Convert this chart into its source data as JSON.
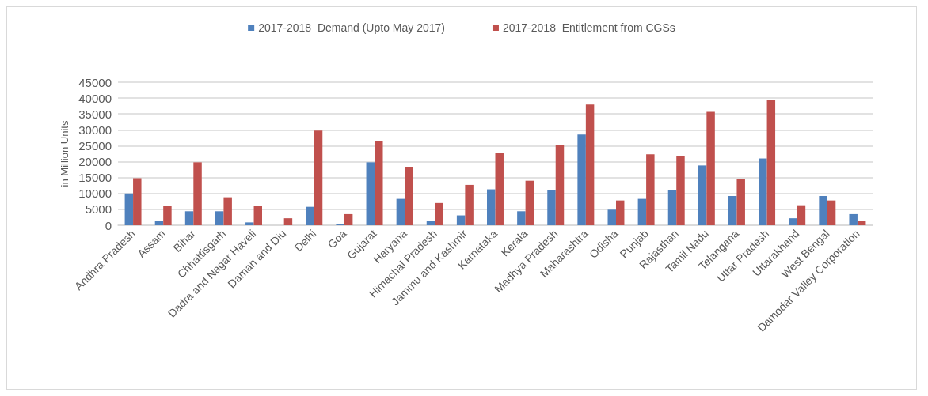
{
  "chart_data": {
    "type": "bar",
    "ylabel": "in Million Units",
    "categories": [
      "Andhra Pradesh",
      "Assam",
      "Bihar",
      "Chhattisgarh",
      "Dadra and Nagar Haveli",
      "Daman and Diu",
      "Delhi",
      "Goa",
      "Gujarat",
      "Haryana",
      "Himachal Pradesh",
      "Jammu and Kashmir",
      "Karnataka",
      "Kerala",
      "Madhya Pradesh",
      "Maharashtra",
      "Odisha",
      "Punjab",
      "Rajasthan",
      "Tamil Nadu",
      "Telangana",
      "Uttar Pradesh",
      "Uttarakhand",
      "West Bengal",
      "Damodar Valley Corporation"
    ],
    "series": [
      {
        "name": "2017-2018  Demand (Upto May 2017)",
        "color": "#4f81bd",
        "values": [
          10000,
          1300,
          4400,
          4400,
          900,
          0,
          5800,
          500,
          19800,
          8300,
          1300,
          3100,
          11300,
          4400,
          11000,
          28500,
          4900,
          8300,
          11000,
          18800,
          9200,
          21000,
          2200,
          9200,
          3500
        ]
      },
      {
        "name": "2017-2018  Entitlement from CGSs",
        "color": "#c0504d",
        "values": [
          14800,
          6200,
          19800,
          8800,
          6200,
          2200,
          29800,
          3500,
          26600,
          18400,
          7000,
          12700,
          22800,
          14000,
          25300,
          38000,
          7800,
          22300,
          21900,
          35700,
          14500,
          39300,
          6300,
          7800,
          1300
        ]
      }
    ],
    "ylim": [
      0,
      45000
    ],
    "yticks": [
      0,
      5000,
      10000,
      15000,
      20000,
      25000,
      30000,
      35000,
      40000,
      45000
    ],
    "grid": "y",
    "legend": "top"
  }
}
